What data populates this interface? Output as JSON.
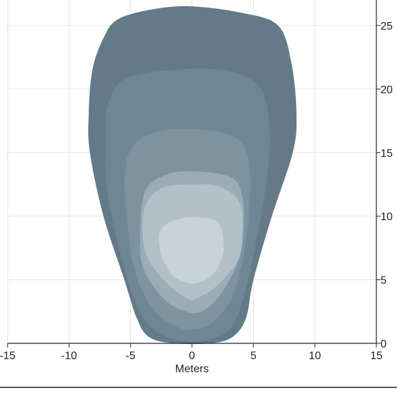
{
  "chart_data": {
    "type": "contour",
    "title": "",
    "xlabel": "Meters",
    "ylabel": "",
    "xlim": [
      -15,
      15
    ],
    "ylim": [
      0,
      27
    ],
    "grid": true,
    "y_axis_side": "right",
    "x_ticks": [
      {
        "value": -15,
        "label": "-15"
      },
      {
        "value": -10,
        "label": "-10"
      },
      {
        "value": -5,
        "label": "-5"
      },
      {
        "value": 0,
        "label": "0"
      },
      {
        "value": 5,
        "label": "5"
      },
      {
        "value": 10,
        "label": "10"
      },
      {
        "value": 15,
        "label": "15"
      }
    ],
    "y_ticks": [
      {
        "value": 0,
        "label": "0"
      },
      {
        "value": 5,
        "label": "5"
      },
      {
        "value": 10,
        "label": "10"
      },
      {
        "value": 15,
        "label": "15"
      },
      {
        "value": 20,
        "label": "20"
      },
      {
        "value": 25,
        "label": "25"
      }
    ],
    "contours": [
      {
        "level": 1,
        "color": "#647a88",
        "points": [
          [
            -1.5,
            0
          ],
          [
            -3.5,
            0.5
          ],
          [
            -4.5,
            2
          ],
          [
            -5.5,
            5
          ],
          [
            -7.2,
            10
          ],
          [
            -8.3,
            15
          ],
          [
            -8.4,
            18
          ],
          [
            -8.1,
            21.5
          ],
          [
            -7.2,
            24
          ],
          [
            -6,
            25.5
          ],
          [
            -3,
            26.3
          ],
          [
            0,
            26.5
          ],
          [
            4,
            26
          ],
          [
            7,
            25
          ],
          [
            8.1,
            22
          ],
          [
            8.5,
            18
          ],
          [
            8.2,
            15
          ],
          [
            6.5,
            10
          ],
          [
            5,
            5
          ],
          [
            4.4,
            2
          ],
          [
            3.3,
            0.5
          ],
          [
            1.5,
            0
          ]
        ]
      },
      {
        "level": 2,
        "color": "#6f8795",
        "points": [
          [
            -1,
            0.2
          ],
          [
            -3,
            1
          ],
          [
            -4.5,
            3
          ],
          [
            -5.8,
            7
          ],
          [
            -6.9,
            12
          ],
          [
            -7,
            16
          ],
          [
            -6.9,
            18.5
          ],
          [
            -5.9,
            20.5
          ],
          [
            -4,
            21.2
          ],
          [
            -1.5,
            21.5
          ],
          [
            1,
            21.6
          ],
          [
            3.5,
            21.3
          ],
          [
            5.5,
            20.2
          ],
          [
            6.2,
            18
          ],
          [
            6.3,
            15
          ],
          [
            5.8,
            11
          ],
          [
            4.8,
            6
          ],
          [
            4,
            3
          ],
          [
            3,
            1
          ],
          [
            1,
            0.2
          ]
        ]
      },
      {
        "level": 3,
        "color": "#7d939f",
        "points": [
          [
            -1,
            1.2
          ],
          [
            -3,
            2.5
          ],
          [
            -4.6,
            5.5
          ],
          [
            -5.3,
            10
          ],
          [
            -5.4,
            14
          ],
          [
            -4.3,
            16
          ],
          [
            -2,
            16.8
          ],
          [
            1,
            16.8
          ],
          [
            3.5,
            16.2
          ],
          [
            4.6,
            14.5
          ],
          [
            4.7,
            11
          ],
          [
            4.2,
            7
          ],
          [
            3.2,
            3.5
          ],
          [
            1.5,
            1.5
          ],
          [
            0,
            1.1
          ]
        ]
      },
      {
        "level": 4,
        "color": "#9aacb6",
        "points": [
          [
            -0.5,
            2.5
          ],
          [
            -2.3,
            3.5
          ],
          [
            -4,
            6
          ],
          [
            -4.2,
            9
          ],
          [
            -3.8,
            12
          ],
          [
            -2,
            13.3
          ],
          [
            0.5,
            13.5
          ],
          [
            3.3,
            13
          ],
          [
            4.1,
            11.5
          ],
          [
            4.2,
            9
          ],
          [
            3.8,
            6.5
          ],
          [
            2.3,
            3.8
          ],
          [
            0.8,
            2.5
          ]
        ]
      },
      {
        "level": 5,
        "color": "#b2c1c8",
        "points": [
          [
            -0.3,
            3.5
          ],
          [
            -1.8,
            4.5
          ],
          [
            -3.5,
            6.5
          ],
          [
            -4,
            8.5
          ],
          [
            -3.8,
            10.8
          ],
          [
            -2.5,
            12.2
          ],
          [
            0,
            12.5
          ],
          [
            2.3,
            12.3
          ],
          [
            3.9,
            11
          ],
          [
            4.1,
            8.5
          ],
          [
            3.7,
            6.5
          ],
          [
            2,
            4.5
          ],
          [
            0.3,
            3.5
          ]
        ]
      },
      {
        "level": 6,
        "color": "#c8d2d7",
        "points": [
          [
            -0.5,
            4.8
          ],
          [
            -1.7,
            5.5
          ],
          [
            -2.5,
            7
          ],
          [
            -2.7,
            8.5
          ],
          [
            -2.2,
            9.3
          ],
          [
            -1,
            9.8
          ],
          [
            0.5,
            9.9
          ],
          [
            2,
            9.6
          ],
          [
            2.5,
            8.5
          ],
          [
            2.5,
            7
          ],
          [
            1.8,
            5.5
          ],
          [
            0.6,
            4.8
          ]
        ]
      }
    ]
  }
}
